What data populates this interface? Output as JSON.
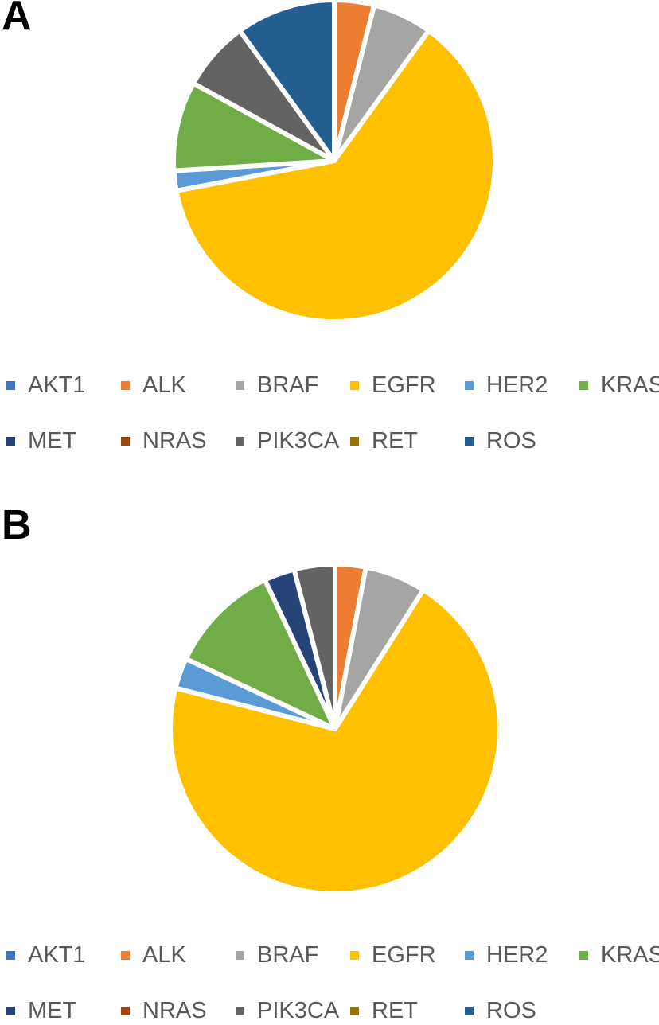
{
  "chart_data": [
    {
      "type": "pie",
      "panel_label": "A",
      "slices": [
        {
          "label": "AKT1",
          "value": 0,
          "color": "#4472C4"
        },
        {
          "label": "ALK",
          "value": 4,
          "color": "#ED7D31"
        },
        {
          "label": "BRAF",
          "value": 6,
          "color": "#A5A5A5"
        },
        {
          "label": "EGFR",
          "value": 62,
          "color": "#FFC000"
        },
        {
          "label": "HER2",
          "value": 2,
          "color": "#5B9BD5"
        },
        {
          "label": "KRAS",
          "value": 9,
          "color": "#70AD47"
        },
        {
          "label": "MET",
          "value": 0,
          "color": "#264478"
        },
        {
          "label": "NRAS",
          "value": 0,
          "color": "#9E480E"
        },
        {
          "label": "PIK3CA",
          "value": 7,
          "color": "#636363"
        },
        {
          "label": "RET",
          "value": 0,
          "color": "#997300"
        },
        {
          "label": "ROS",
          "value": 10,
          "color": "#255E91"
        }
      ],
      "legend": [
        "AKT1",
        "ALK",
        "BRAF",
        "EGFR",
        "HER2",
        "KRAS",
        "MET",
        "NRAS",
        "PIK3CA",
        "RET",
        "ROS"
      ],
      "legend_position": "bottom"
    },
    {
      "type": "pie",
      "panel_label": "B",
      "slices": [
        {
          "label": "AKT1",
          "value": 0,
          "color": "#4472C4"
        },
        {
          "label": "ALK",
          "value": 3,
          "color": "#ED7D31"
        },
        {
          "label": "BRAF",
          "value": 6,
          "color": "#A5A5A5"
        },
        {
          "label": "EGFR",
          "value": 70,
          "color": "#FFC000"
        },
        {
          "label": "HER2",
          "value": 3,
          "color": "#5B9BD5"
        },
        {
          "label": "KRAS",
          "value": 11,
          "color": "#70AD47"
        },
        {
          "label": "MET",
          "value": 3,
          "color": "#264478"
        },
        {
          "label": "NRAS",
          "value": 0,
          "color": "#9E480E"
        },
        {
          "label": "PIK3CA",
          "value": 4,
          "color": "#636363"
        },
        {
          "label": "RET",
          "value": 0,
          "color": "#997300"
        },
        {
          "label": "ROS",
          "value": 0,
          "color": "#255E91"
        }
      ],
      "legend": [
        "AKT1",
        "ALK",
        "BRAF",
        "EGFR",
        "HER2",
        "KRAS",
        "MET",
        "NRAS",
        "PIK3CA",
        "RET",
        "ROS"
      ],
      "legend_position": "bottom"
    }
  ]
}
